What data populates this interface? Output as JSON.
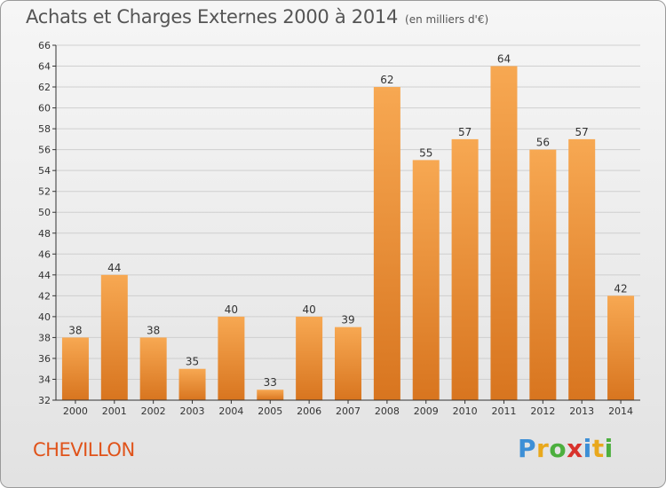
{
  "title": "Achats et Charges Externes 2000 à 2014",
  "subtitle": "(en milliers d'€)",
  "commune": "CHEVILLON",
  "logo": {
    "letters": [
      "P",
      "r",
      "o",
      "x",
      "i",
      "t",
      "i"
    ],
    "colors": [
      "#3d8fd6",
      "#e9a81c",
      "#4caf3e",
      "#d8322c",
      "#3d8fd6",
      "#e9a81c",
      "#4caf3e"
    ]
  },
  "colors": {
    "bar_top": "#f7a852",
    "bar_bottom": "#d8751f",
    "grid": "#cfcfcf",
    "axis": "#333333",
    "text": "#333333"
  },
  "chart_data": {
    "type": "bar",
    "categories": [
      "2000",
      "2001",
      "2002",
      "2003",
      "2004",
      "2005",
      "2006",
      "2007",
      "2008",
      "2009",
      "2010",
      "2011",
      "2012",
      "2013",
      "2014"
    ],
    "values": [
      38,
      44,
      38,
      35,
      40,
      33,
      40,
      39,
      62,
      55,
      57,
      64,
      56,
      57,
      42
    ],
    "ylim": [
      32,
      66
    ],
    "yticks": [
      32,
      34,
      36,
      38,
      40,
      42,
      44,
      46,
      48,
      50,
      52,
      54,
      56,
      58,
      60,
      62,
      64,
      66
    ],
    "grid": true,
    "data_labels": true
  }
}
